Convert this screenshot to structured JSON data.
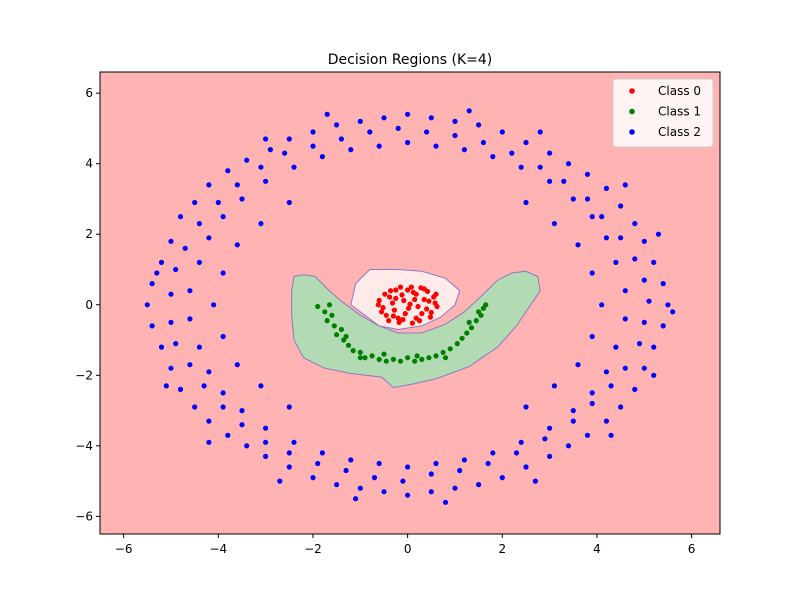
{
  "chart_data": {
    "type": "scatter",
    "title": "Decision Regions (K=4)",
    "xlabel": "",
    "ylabel": "",
    "xlim": [
      -6.5,
      6.6
    ],
    "ylim": [
      -6.5,
      6.6
    ],
    "x_ticks": [
      -6,
      -4,
      -2,
      0,
      2,
      4,
      6
    ],
    "y_ticks": [
      -6,
      -4,
      -2,
      0,
      2,
      4,
      6
    ],
    "x_tick_labels": [
      "−6",
      "−4",
      "−2",
      "0",
      "2",
      "4",
      "6"
    ],
    "y_tick_labels": [
      "−6",
      "−4",
      "−2",
      "0",
      "2",
      "4",
      "6"
    ],
    "grid": false,
    "legend_position": "top-right",
    "background_region_color": "#ffb3b3",
    "region_boundary_color": "#8b7bbf",
    "regions": [
      {
        "name": "Class 1",
        "color": "#b3dbb3",
        "polygon": [
          [
            -2.4,
            0.8
          ],
          [
            -2.2,
            0.85
          ],
          [
            -1.95,
            0.8
          ],
          [
            -1.7,
            0.45
          ],
          [
            -1.4,
            0.1
          ],
          [
            -1.0,
            -0.3
          ],
          [
            -0.6,
            -0.6
          ],
          [
            -0.2,
            -0.8
          ],
          [
            0.3,
            -0.8
          ],
          [
            0.8,
            -0.55
          ],
          [
            1.2,
            -0.2
          ],
          [
            1.6,
            0.3
          ],
          [
            1.9,
            0.7
          ],
          [
            2.2,
            0.9
          ],
          [
            2.5,
            0.95
          ],
          [
            2.75,
            0.8
          ],
          [
            2.8,
            0.4
          ],
          [
            2.55,
            -0.1
          ],
          [
            2.3,
            -0.6
          ],
          [
            1.9,
            -1.2
          ],
          [
            1.3,
            -1.75
          ],
          [
            0.6,
            -2.1
          ],
          [
            0.1,
            -2.25
          ],
          [
            -0.3,
            -2.35
          ],
          [
            -0.55,
            -2.05
          ],
          [
            -1.2,
            -1.95
          ],
          [
            -1.75,
            -1.8
          ],
          [
            -2.2,
            -1.5
          ],
          [
            -2.4,
            -1.0
          ],
          [
            -2.45,
            -0.3
          ],
          [
            -2.45,
            0.4
          ]
        ]
      },
      {
        "name": "Class 0",
        "color": "#ffeaea",
        "polygon": [
          [
            -0.8,
            1.0
          ],
          [
            -0.2,
            1.0
          ],
          [
            0.3,
            0.95
          ],
          [
            0.8,
            0.75
          ],
          [
            1.1,
            0.4
          ],
          [
            1.0,
            0.0
          ],
          [
            0.7,
            -0.35
          ],
          [
            0.3,
            -0.6
          ],
          [
            -0.2,
            -0.7
          ],
          [
            -0.6,
            -0.6
          ],
          [
            -0.9,
            -0.3
          ],
          [
            -1.2,
            0.0
          ],
          [
            -1.1,
            0.6
          ]
        ]
      }
    ],
    "series": [
      {
        "name": "Class 0",
        "color": "#ff0000",
        "points": [
          [
            0.12,
            0.35
          ],
          [
            -0.25,
            0.18
          ],
          [
            0.4,
            -0.12
          ],
          [
            -0.52,
            -0.08
          ],
          [
            0.28,
            0.48
          ],
          [
            -0.1,
            -0.42
          ],
          [
            0.55,
            0.22
          ],
          [
            -0.36,
            0.4
          ],
          [
            0.05,
            0.02
          ],
          [
            0.18,
            -0.38
          ],
          [
            -0.45,
            -0.3
          ],
          [
            0.62,
            -0.05
          ],
          [
            -0.15,
            0.5
          ],
          [
            0.35,
            0.15
          ],
          [
            -0.6,
            0.12
          ],
          [
            0.48,
            -0.35
          ],
          [
            0.0,
            0.42
          ],
          [
            -0.28,
            -0.15
          ],
          [
            0.22,
            -0.05
          ],
          [
            -0.05,
            -0.25
          ],
          [
            0.42,
            0.38
          ],
          [
            -0.48,
            0.3
          ],
          [
            0.1,
            -0.52
          ],
          [
            -0.32,
            0.05
          ],
          [
            0.58,
            0.05
          ],
          [
            -0.2,
            -0.38
          ],
          [
            0.3,
            -0.25
          ],
          [
            -0.4,
            -0.45
          ],
          [
            0.15,
            0.15
          ],
          [
            -0.12,
            0.28
          ],
          [
            0.5,
            -0.22
          ],
          [
            -0.55,
            -0.2
          ],
          [
            0.02,
            -0.1
          ],
          [
            0.35,
            0.45
          ],
          [
            -0.25,
            0.42
          ],
          [
            0.25,
            -0.45
          ],
          [
            -0.38,
            0.22
          ],
          [
            0.45,
            0.1
          ],
          [
            -0.08,
            0.12
          ],
          [
            0.18,
            0.3
          ],
          [
            -0.3,
            -0.32
          ],
          [
            0.6,
            0.3
          ],
          [
            -0.62,
            0.0
          ],
          [
            0.08,
            0.5
          ],
          [
            -0.18,
            -0.5
          ]
        ]
      },
      {
        "name": "Class 1",
        "color": "#008000",
        "points": [
          [
            -1.9,
            -0.05
          ],
          [
            -1.75,
            -0.2
          ],
          [
            -1.65,
            0.0
          ],
          [
            -1.7,
            -0.45
          ],
          [
            -1.55,
            -0.6
          ],
          [
            -1.5,
            -0.85
          ],
          [
            -1.4,
            -0.7
          ],
          [
            -1.35,
            -1.0
          ],
          [
            -1.25,
            -1.15
          ],
          [
            -1.15,
            -1.3
          ],
          [
            -1.0,
            -1.35
          ],
          [
            -0.9,
            -1.5
          ],
          [
            -0.75,
            -1.45
          ],
          [
            -0.6,
            -1.55
          ],
          [
            -0.45,
            -1.6
          ],
          [
            -0.3,
            -1.55
          ],
          [
            -0.15,
            -1.6
          ],
          [
            0.0,
            -1.5
          ],
          [
            0.15,
            -1.6
          ],
          [
            0.3,
            -1.55
          ],
          [
            0.45,
            -1.5
          ],
          [
            0.6,
            -1.45
          ],
          [
            0.75,
            -1.35
          ],
          [
            0.9,
            -1.25
          ],
          [
            1.05,
            -1.1
          ],
          [
            1.15,
            -0.95
          ],
          [
            1.25,
            -0.8
          ],
          [
            1.35,
            -0.65
          ],
          [
            1.45,
            -0.45
          ],
          [
            1.55,
            -0.3
          ],
          [
            1.6,
            -0.1
          ],
          [
            1.65,
            0.0
          ],
          [
            1.5,
            -0.2
          ],
          [
            1.3,
            -0.5
          ],
          [
            -1.0,
            -1.5
          ],
          [
            -0.5,
            -1.4
          ],
          [
            0.2,
            -1.45
          ],
          [
            0.8,
            -1.5
          ],
          [
            -1.6,
            -0.3
          ],
          [
            -1.3,
            -0.9
          ]
        ]
      },
      {
        "name": "Class 2",
        "color": "#0000ff",
        "points": [
          [
            -5.4,
            0.6
          ],
          [
            -5.2,
            1.2
          ],
          [
            -5.0,
            1.8
          ],
          [
            -4.8,
            2.5
          ],
          [
            -4.5,
            2.9
          ],
          [
            -4.2,
            3.4
          ],
          [
            -3.8,
            3.8
          ],
          [
            -3.4,
            4.1
          ],
          [
            -2.9,
            4.4
          ],
          [
            -2.5,
            4.7
          ],
          [
            -2.0,
            4.9
          ],
          [
            -1.5,
            5.1
          ],
          [
            -1.0,
            5.2
          ],
          [
            -0.5,
            5.3
          ],
          [
            0.0,
            5.4
          ],
          [
            0.5,
            5.3
          ],
          [
            1.0,
            5.2
          ],
          [
            1.5,
            5.1
          ],
          [
            2.0,
            4.9
          ],
          [
            2.5,
            4.6
          ],
          [
            3.0,
            4.3
          ],
          [
            3.4,
            4.0
          ],
          [
            3.8,
            3.7
          ],
          [
            4.2,
            3.3
          ],
          [
            4.5,
            2.8
          ],
          [
            4.8,
            2.3
          ],
          [
            5.0,
            1.8
          ],
          [
            5.2,
            1.2
          ],
          [
            5.4,
            0.6
          ],
          [
            5.5,
            0.0
          ],
          [
            5.4,
            -0.6
          ],
          [
            5.2,
            -1.2
          ],
          [
            5.0,
            -1.8
          ],
          [
            4.8,
            -2.4
          ],
          [
            4.5,
            -2.9
          ],
          [
            4.2,
            -3.3
          ],
          [
            3.8,
            -3.7
          ],
          [
            3.4,
            -4.0
          ],
          [
            3.0,
            -4.3
          ],
          [
            2.5,
            -4.6
          ],
          [
            2.0,
            -4.9
          ],
          [
            1.5,
            -5.1
          ],
          [
            1.0,
            -5.2
          ],
          [
            0.5,
            -5.3
          ],
          [
            0.0,
            -5.4
          ],
          [
            -0.5,
            -5.3
          ],
          [
            -1.0,
            -5.2
          ],
          [
            -1.5,
            -5.1
          ],
          [
            -2.0,
            -4.9
          ],
          [
            -2.5,
            -4.6
          ],
          [
            -3.0,
            -4.3
          ],
          [
            -3.4,
            -4.0
          ],
          [
            -3.8,
            -3.7
          ],
          [
            -4.2,
            -3.3
          ],
          [
            -4.5,
            -2.9
          ],
          [
            -4.8,
            -2.4
          ],
          [
            -5.0,
            -1.8
          ],
          [
            -5.2,
            -1.2
          ],
          [
            -5.4,
            -0.6
          ],
          [
            -5.5,
            0.0
          ],
          [
            -4.6,
            0.4
          ],
          [
            -4.4,
            1.2
          ],
          [
            -4.2,
            1.9
          ],
          [
            -3.9,
            2.5
          ],
          [
            -3.5,
            3.0
          ],
          [
            -3.0,
            3.5
          ],
          [
            -2.4,
            3.9
          ],
          [
            -1.8,
            4.2
          ],
          [
            -1.2,
            4.4
          ],
          [
            -0.6,
            4.5
          ],
          [
            0.0,
            4.6
          ],
          [
            0.6,
            4.5
          ],
          [
            1.2,
            4.4
          ],
          [
            1.8,
            4.2
          ],
          [
            2.4,
            3.9
          ],
          [
            3.0,
            3.5
          ],
          [
            3.5,
            3.0
          ],
          [
            3.9,
            2.5
          ],
          [
            4.2,
            1.9
          ],
          [
            4.4,
            1.2
          ],
          [
            4.6,
            0.4
          ],
          [
            4.6,
            -0.4
          ],
          [
            4.4,
            -1.2
          ],
          [
            4.2,
            -1.9
          ],
          [
            3.9,
            -2.5
          ],
          [
            3.5,
            -3.0
          ],
          [
            3.0,
            -3.5
          ],
          [
            2.4,
            -3.9
          ],
          [
            1.8,
            -4.2
          ],
          [
            1.2,
            -4.4
          ],
          [
            0.6,
            -4.5
          ],
          [
            0.0,
            -4.6
          ],
          [
            -0.6,
            -4.5
          ],
          [
            -1.2,
            -4.4
          ],
          [
            -1.8,
            -4.2
          ],
          [
            -2.4,
            -3.9
          ],
          [
            -3.0,
            -3.5
          ],
          [
            -3.5,
            -3.0
          ],
          [
            -3.9,
            -2.5
          ],
          [
            -4.2,
            -1.9
          ],
          [
            -4.4,
            -1.2
          ],
          [
            -4.6,
            -0.4
          ],
          [
            -5.0,
            0.3
          ],
          [
            -4.9,
            1.0
          ],
          [
            -4.7,
            1.6
          ],
          [
            -4.4,
            2.3
          ],
          [
            -4.0,
            2.9
          ],
          [
            -3.6,
            3.4
          ],
          [
            -3.1,
            3.9
          ],
          [
            -2.6,
            4.3
          ],
          [
            -2.0,
            4.5
          ],
          [
            -1.4,
            4.7
          ],
          [
            -0.8,
            4.9
          ],
          [
            -0.2,
            5.0
          ],
          [
            0.4,
            4.9
          ],
          [
            1.0,
            4.8
          ],
          [
            1.6,
            4.6
          ],
          [
            2.2,
            4.3
          ],
          [
            2.8,
            3.9
          ],
          [
            3.3,
            3.5
          ],
          [
            3.8,
            3.0
          ],
          [
            4.1,
            2.5
          ],
          [
            4.5,
            1.9
          ],
          [
            4.8,
            1.3
          ],
          [
            5.0,
            0.7
          ],
          [
            5.1,
            0.1
          ],
          [
            5.0,
            -0.5
          ],
          [
            4.9,
            -1.1
          ],
          [
            4.6,
            -1.8
          ],
          [
            4.3,
            -2.3
          ],
          [
            3.9,
            -2.8
          ],
          [
            3.5,
            -3.3
          ],
          [
            2.9,
            -3.8
          ],
          [
            2.3,
            -4.2
          ],
          [
            1.7,
            -4.5
          ],
          [
            1.1,
            -4.7
          ],
          [
            0.5,
            -4.8
          ],
          [
            -0.1,
            -5.0
          ],
          [
            -0.7,
            -4.9
          ],
          [
            -1.3,
            -4.7
          ],
          [
            -1.9,
            -4.5
          ],
          [
            -2.5,
            -4.2
          ],
          [
            -3.0,
            -3.9
          ],
          [
            -3.5,
            -3.4
          ],
          [
            -3.9,
            -2.9
          ],
          [
            -4.3,
            -2.3
          ],
          [
            -4.6,
            -1.7
          ],
          [
            -4.9,
            -1.1
          ],
          [
            -5.0,
            -0.5
          ],
          [
            -5.3,
            0.9
          ],
          [
            -3.0,
            4.7
          ],
          [
            -1.7,
            5.4
          ],
          [
            1.3,
            5.5
          ],
          [
            2.8,
            4.9
          ],
          [
            4.6,
            3.4
          ],
          [
            5.3,
            2.0
          ],
          [
            5.6,
            -0.2
          ],
          [
            5.2,
            -2.0
          ],
          [
            4.3,
            -3.7
          ],
          [
            2.7,
            -5.0
          ],
          [
            0.8,
            -5.6
          ],
          [
            -1.1,
            -5.5
          ],
          [
            -2.7,
            -5.0
          ],
          [
            -4.2,
            -3.9
          ],
          [
            -5.1,
            -2.3
          ],
          [
            -4.1,
            0.0
          ],
          [
            -3.9,
            0.9
          ],
          [
            -3.6,
            1.7
          ],
          [
            -3.1,
            2.3
          ],
          [
            -2.5,
            2.9
          ],
          [
            2.5,
            2.9
          ],
          [
            3.1,
            2.3
          ],
          [
            3.6,
            1.7
          ],
          [
            3.9,
            0.9
          ],
          [
            4.1,
            0.0
          ],
          [
            3.9,
            -0.9
          ],
          [
            3.6,
            -1.7
          ],
          [
            3.1,
            -2.3
          ],
          [
            2.5,
            -2.9
          ],
          [
            -2.5,
            -2.9
          ],
          [
            -3.1,
            -2.3
          ],
          [
            -3.6,
            -1.7
          ],
          [
            -3.9,
            -0.9
          ]
        ]
      }
    ]
  }
}
